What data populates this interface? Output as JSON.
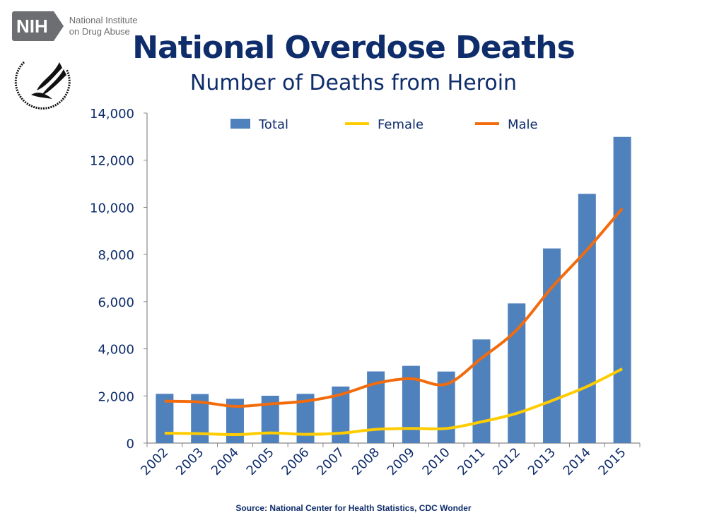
{
  "logo": {
    "nih_mark": "NIH",
    "nih_name_line1": "National Institute",
    "nih_name_line2": "on Drug Abuse",
    "hhs_seal_text": "DEPARTMENT OF HEALTH & HUMAN SERVICES-USA"
  },
  "title": "National Overdose Deaths",
  "subtitle": "Number of Deaths from Heroin",
  "source": "Source: National Center for Health Statistics, CDC Wonder",
  "chart_data": {
    "type": "bar+line",
    "title": "National Overdose Deaths",
    "subtitle": "Number of Deaths from Heroin",
    "categories": [
      "2002",
      "2003",
      "2004",
      "2005",
      "2006",
      "2007",
      "2008",
      "2009",
      "2010",
      "2011",
      "2012",
      "2013",
      "2014",
      "2015"
    ],
    "series": [
      {
        "name": "Total",
        "type": "bar",
        "color": "#4f81bd",
        "values": [
          2089,
          2080,
          1878,
          2009,
          2088,
          2399,
          3041,
          3278,
          3036,
          4397,
          5925,
          8257,
          10574,
          12989
        ]
      },
      {
        "name": "Female",
        "type": "line",
        "color": "#ffcc00",
        "values": [
          420,
          400,
          360,
          430,
          370,
          420,
          580,
          620,
          620,
          900,
          1260,
          1800,
          2400,
          3150
        ]
      },
      {
        "name": "Male",
        "type": "line",
        "color": "#f26c0d",
        "values": [
          1780,
          1740,
          1560,
          1660,
          1780,
          2060,
          2530,
          2730,
          2500,
          3600,
          4800,
          6600,
          8200,
          9950
        ]
      }
    ],
    "yticks": [
      "0",
      "2,000",
      "4,000",
      "6,000",
      "8,000",
      "10,000",
      "12,000",
      "14,000"
    ],
    "ylim": [
      0,
      14000
    ],
    "grid": false,
    "legend": "top"
  }
}
